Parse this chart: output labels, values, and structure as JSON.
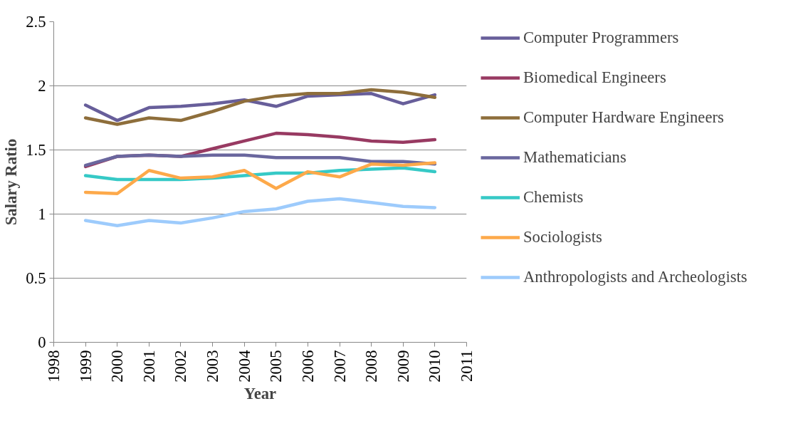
{
  "chart_data": {
    "type": "line",
    "xlabel": "Year",
    "ylabel": "Salary Ratio",
    "x": [
      1999,
      2000,
      2001,
      2002,
      2003,
      2004,
      2005,
      2006,
      2007,
      2008,
      2009,
      2010
    ],
    "series": [
      {
        "name": "Computer Programmers",
        "color": "#675e9a",
        "values": [
          1.85,
          1.73,
          1.83,
          1.84,
          1.86,
          1.89,
          1.84,
          1.92,
          1.93,
          1.94,
          1.86,
          1.93
        ]
      },
      {
        "name": "Biomedical Engineers",
        "color": "#983a62",
        "values": [
          1.37,
          1.45,
          1.46,
          1.45,
          1.51,
          1.57,
          1.63,
          1.62,
          1.6,
          1.57,
          1.56,
          1.58
        ]
      },
      {
        "name": "Computer Hardware Engineers",
        "color": "#8e6e3b",
        "values": [
          1.75,
          1.7,
          1.75,
          1.73,
          1.8,
          1.88,
          1.92,
          1.94,
          1.94,
          1.97,
          1.95,
          1.91
        ]
      },
      {
        "name": "Mathematicians",
        "color": "#6a679e",
        "values": [
          1.38,
          1.45,
          1.46,
          1.45,
          1.46,
          1.46,
          1.44,
          1.44,
          1.44,
          1.41,
          1.41,
          1.39
        ]
      },
      {
        "name": "Chemists",
        "color": "#36c9c6",
        "values": [
          1.3,
          1.27,
          1.27,
          1.27,
          1.28,
          1.3,
          1.32,
          1.32,
          1.34,
          1.35,
          1.36,
          1.33
        ]
      },
      {
        "name": "Sociologists",
        "color": "#fda94a",
        "values": [
          1.17,
          1.16,
          1.34,
          1.28,
          1.29,
          1.34,
          1.2,
          1.33,
          1.29,
          1.39,
          1.38,
          1.4
        ]
      },
      {
        "name": "Anthropologists and Archeologists",
        "color": "#9dcbfc",
        "values": [
          0.95,
          0.91,
          0.95,
          0.93,
          0.97,
          1.02,
          1.04,
          1.1,
          1.12,
          1.09,
          1.06,
          1.05
        ]
      }
    ],
    "xlim": [
      1998,
      2011
    ],
    "xticks": [
      1998,
      1999,
      2000,
      2001,
      2002,
      2003,
      2004,
      2005,
      2006,
      2007,
      2008,
      2009,
      2010,
      2011
    ],
    "ylim": [
      0,
      2.5
    ],
    "yticks": [
      0,
      0.5,
      1,
      1.5,
      2,
      2.5
    ],
    "grid": "y",
    "legend": "right",
    "line_style": "solid",
    "marker": "none"
  }
}
